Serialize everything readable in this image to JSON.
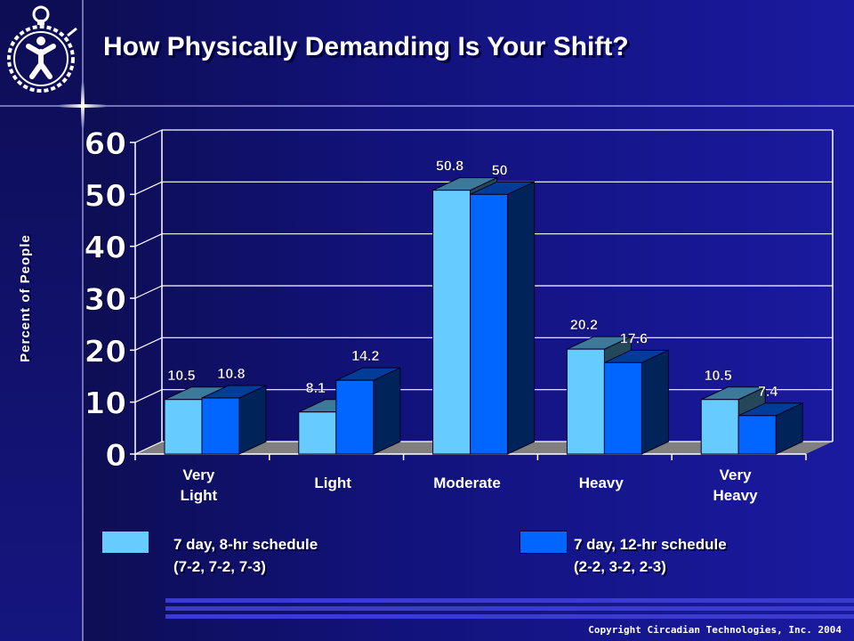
{
  "title": "How Physically Demanding Is Your Shift?",
  "copyright": "Copyright Circadian Technologies, Inc. 2004",
  "legend": [
    {
      "line1": "7 day, 8-hr  schedule",
      "line2": "(7-2, 7-2, 7-3)",
      "color": "#66ccff"
    },
    {
      "line1": "7 day, 12-hr schedule",
      "line2": "(2-2, 3-2, 2-3)",
      "color": "#0066ff"
    }
  ],
  "chart_data": {
    "type": "bar",
    "title": "How Physically Demanding Is Your Shift?",
    "ylabel": "Percent of  People",
    "xlabel": "",
    "ylim": [
      0,
      60
    ],
    "yticks": [
      "0",
      "10",
      "20",
      "30",
      "40",
      "50",
      "60"
    ],
    "categories": [
      [
        "Very",
        "Light"
      ],
      [
        "Light"
      ],
      [
        "Moderate"
      ],
      [
        "Heavy"
      ],
      [
        "Very",
        "Heavy"
      ]
    ],
    "series": [
      {
        "name": "7 day, 8-hr  schedule (7-2, 7-2, 7-3)",
        "values": [
          10.5,
          8.1,
          50.8,
          20.2,
          10.5
        ],
        "labels": [
          "10.5",
          "8.1",
          "50.8",
          "20.2",
          "10.5"
        ],
        "color": "#66ccff"
      },
      {
        "name": "7 day, 12-hr schedule (2-2, 3-2, 2-3)",
        "values": [
          10.8,
          14.2,
          50,
          17.6,
          7.4
        ],
        "labels": [
          "10.8",
          "14.2",
          "50",
          "17.6",
          "7.4"
        ],
        "color": "#0066ff"
      }
    ],
    "grid": true,
    "legend_position": "bottom",
    "depth": "3d"
  }
}
